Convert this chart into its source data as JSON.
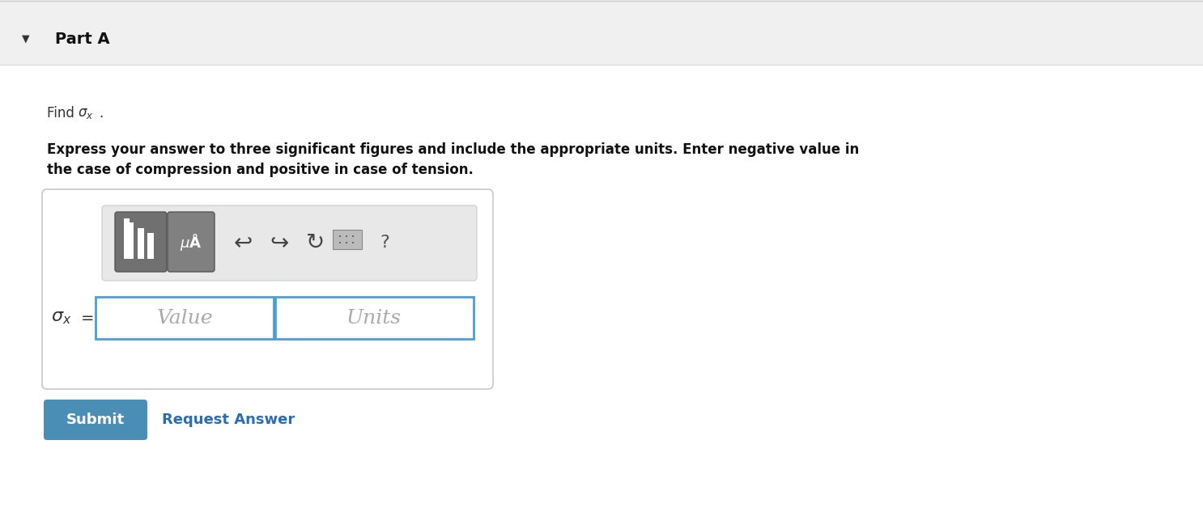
{
  "bg_color": "#f5f5f5",
  "white_bg": "#ffffff",
  "part_a_text": "Part A",
  "arrow_symbol": "▼",
  "find_text": "Find ",
  "find_sigma": "$\\sigma_x$",
  "find_period": ".",
  "bold_text_line1": "Express your answer to three significant figures and include the appropriate units. Enter negative value in",
  "bold_text_line2": "the case of compression and positive in case of tension.",
  "value_placeholder": "Value",
  "units_placeholder": "Units",
  "sigma_label": "$\\sigma_x$",
  "equals": "=",
  "submit_text": "Submit",
  "request_text": "Request Answer",
  "submit_bg": "#4a8db5",
  "submit_text_color": "#ffffff",
  "request_color": "#2a6db5",
  "input_border_color": "#4a9fd4",
  "toolbar_bg": "#e8e8e8",
  "toolbar_border": "#cccccc",
  "input_box_bg": "#ffffff",
  "outer_box_bg": "#ffffff",
  "outer_box_border": "#c8c8c8",
  "part_a_bar_bg": "#f0f0f0",
  "part_a_bar_border": "#dddddd",
  "dark_btn_color": "#707070",
  "dark_btn_color2": "#808080"
}
